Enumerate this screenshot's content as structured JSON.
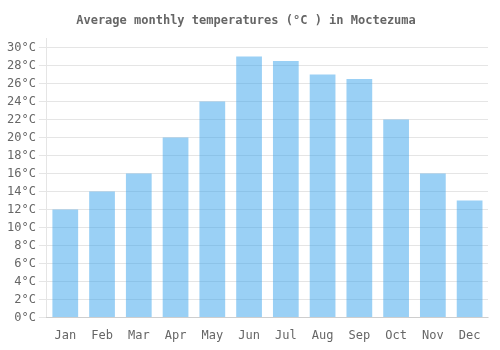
{
  "chart_data": {
    "type": "bar",
    "title": "Average monthly temperatures (°C ) in Moctezuma",
    "categories": [
      "Jan",
      "Feb",
      "Mar",
      "Apr",
      "May",
      "Jun",
      "Jul",
      "Aug",
      "Sep",
      "Oct",
      "Nov",
      "Dec"
    ],
    "values": [
      12,
      14,
      16,
      20,
      24,
      29,
      28.5,
      27,
      26.5,
      22,
      16,
      13
    ],
    "ylim": [
      0,
      31
    ],
    "yticks": [
      {
        "value": 0,
        "label": "0°C"
      },
      {
        "value": 2,
        "label": "2°C"
      },
      {
        "value": 4,
        "label": "4°C"
      },
      {
        "value": 6,
        "label": "6°C"
      },
      {
        "value": 8,
        "label": "8°C"
      },
      {
        "value": 10,
        "label": "10°C"
      },
      {
        "value": 12,
        "label": "12°C"
      },
      {
        "value": 14,
        "label": "14°C"
      },
      {
        "value": 16,
        "label": "16°C"
      },
      {
        "value": 18,
        "label": "18°C"
      },
      {
        "value": 20,
        "label": "20°C"
      },
      {
        "value": 22,
        "label": "22°C"
      },
      {
        "value": 24,
        "label": "24°C"
      },
      {
        "value": 26,
        "label": "26°C"
      },
      {
        "value": 28,
        "label": "28°C"
      },
      {
        "value": 30,
        "label": "30°C"
      }
    ],
    "grid": true
  }
}
